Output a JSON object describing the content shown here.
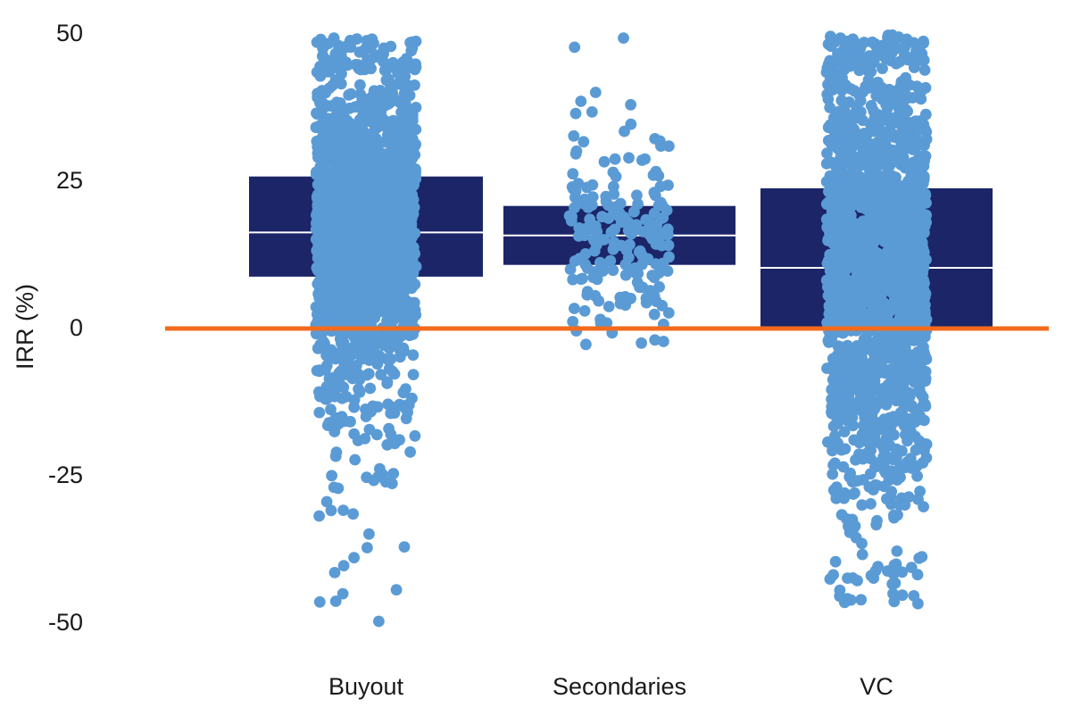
{
  "chart_data": {
    "type": "box-strip",
    "title": "",
    "xlabel": "",
    "ylabel": "IRR (%)",
    "ylim": [
      -57,
      51
    ],
    "y_ticks": [
      {
        "value": 50,
        "label": "50"
      },
      {
        "value": 25,
        "label": "25"
      },
      {
        "value": 0,
        "label": "0"
      },
      {
        "value": -25,
        "label": "-25"
      },
      {
        "value": -50,
        "label": "-50"
      }
    ],
    "categories": [
      "Buyout",
      "Secondaries",
      "VC"
    ],
    "boxes": [
      {
        "category": "Buyout",
        "q1": 8.5,
        "median": 16,
        "q3": 25.5
      },
      {
        "category": "Secondaries",
        "q1": 10.5,
        "median": 15.5,
        "q3": 20.5
      },
      {
        "category": "VC",
        "q1": 0,
        "median": 10,
        "q3": 23.5
      }
    ],
    "points": [
      {
        "category": "Buyout",
        "count": 1800,
        "min": -50,
        "max": 49,
        "spread": 0.24,
        "seed": 11
      },
      {
        "category": "Secondaries",
        "count": 190,
        "min": -3,
        "max": 49,
        "spread": 0.2,
        "seed": 23
      },
      {
        "category": "VC",
        "count": 1800,
        "min": -47,
        "max": 49.5,
        "spread": 0.24,
        "seed": 37
      }
    ],
    "reference_line": {
      "value": 0
    },
    "grid": false,
    "legend": "none",
    "colors": {
      "box": "#1b2568",
      "median": "#ffffff",
      "points": "#5b9bd5",
      "reference_line": "#f26b1d",
      "text": "#1a1a1a"
    }
  }
}
